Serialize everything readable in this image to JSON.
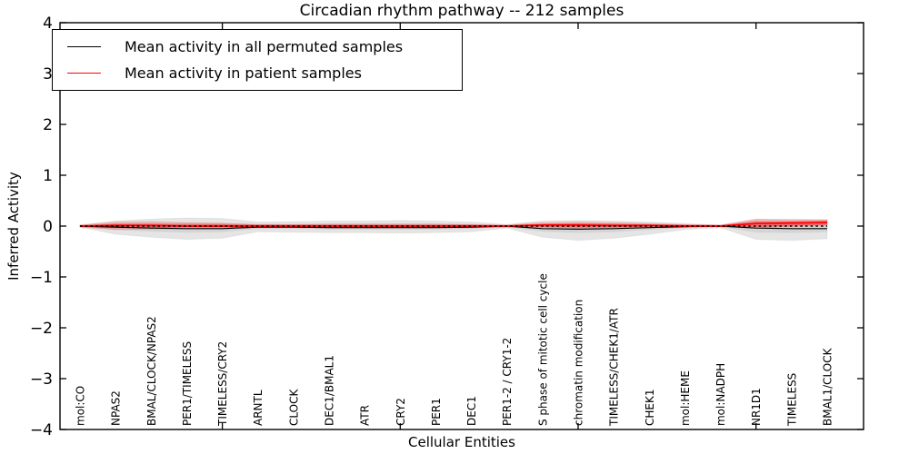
{
  "figure": {
    "title": "Circadian rhythm pathway -- 212 samples",
    "xlabel": "Cellular Entities",
    "ylabel": "Inferred Activity"
  },
  "legend": {
    "items": [
      {
        "label": "Mean activity in all permuted samples",
        "color": "#000000"
      },
      {
        "label": "Mean activity in patient samples",
        "color": "#ff0000"
      }
    ],
    "position": "upper left"
  },
  "chart_data": {
    "type": "line",
    "title": "Circadian rhythm pathway -- 212 samples",
    "xlabel": "Cellular Entities",
    "ylabel": "Inferred Activity",
    "ylim": [
      -4,
      4
    ],
    "yticks": [
      -4,
      -3,
      -2,
      -1,
      0,
      1,
      2,
      3,
      4
    ],
    "grid": false,
    "legend_position": "upper left",
    "frame_tick_indices": [
      4,
      9,
      14,
      19
    ],
    "categories": [
      "mol:CO",
      "NPAS2",
      "BMAL/CLOCK/NPAS2",
      "PER1/TIMELESS",
      "TIMELESS/CRY2",
      "ARNTL",
      "CLOCK",
      "DEC1/BMAL1",
      "ATR",
      "CRY2",
      "PER1",
      "DEC1",
      "PER1-2 / CRY1-2",
      "S phase of mitotic cell cycle",
      "chromatin modification",
      "TIMELESS/CHEK1/ATR",
      "CHEK1",
      "mol:HEME",
      "mol:NADPH",
      "NR1D1",
      "TIMELESS",
      "BMAL1/CLOCK"
    ],
    "series": [
      {
        "name": "Mean activity in all permuted samples",
        "color": "#000000",
        "values": [
          0,
          -0.02,
          -0.04,
          -0.05,
          -0.05,
          -0.02,
          -0.02,
          -0.03,
          -0.03,
          -0.03,
          -0.03,
          -0.02,
          0,
          -0.05,
          -0.06,
          -0.05,
          -0.03,
          -0.01,
          0,
          -0.04,
          -0.05,
          -0.05
        ]
      },
      {
        "name": "Mean activity in patient samples",
        "color": "#ff0000",
        "values": [
          0,
          0.01,
          0.01,
          0,
          0,
          0,
          0,
          0,
          0,
          0,
          0,
          0,
          0,
          0.02,
          0.02,
          0.01,
          0.01,
          0,
          0,
          0.05,
          0.06,
          0.07
        ]
      }
    ],
    "bands": [
      {
        "name": "permuted-range-outer",
        "color": "#bbbbbb",
        "opacity": 0.38,
        "upper": [
          0.02,
          0.1,
          0.14,
          0.16,
          0.15,
          0.08,
          0.09,
          0.1,
          0.1,
          0.11,
          0.1,
          0.08,
          0.03,
          0.1,
          0.11,
          0.1,
          0.08,
          0.05,
          0.02,
          0.13,
          0.14,
          0.12
        ],
        "lower": [
          -0.02,
          -0.16,
          -0.22,
          -0.26,
          -0.24,
          -0.11,
          -0.12,
          -0.13,
          -0.13,
          -0.14,
          -0.13,
          -0.11,
          -0.04,
          -0.22,
          -0.28,
          -0.24,
          -0.16,
          -0.07,
          -0.03,
          -0.26,
          -0.28,
          -0.25
        ]
      },
      {
        "name": "permuted-range-inner",
        "color": "#bbbbbb",
        "opacity": 0.38,
        "upper": [
          0.01,
          0.04,
          0.05,
          0.06,
          0.05,
          0.03,
          0.03,
          0.04,
          0.04,
          0.04,
          0.04,
          0.03,
          0.01,
          0.03,
          0.04,
          0.03,
          0.03,
          0.02,
          0.01,
          0.05,
          0.05,
          0.04
        ],
        "lower": [
          -0.01,
          -0.07,
          -0.1,
          -0.12,
          -0.11,
          -0.05,
          -0.05,
          -0.06,
          -0.06,
          -0.06,
          -0.06,
          -0.05,
          -0.02,
          -0.1,
          -0.13,
          -0.11,
          -0.07,
          -0.03,
          -0.01,
          -0.12,
          -0.13,
          -0.11
        ]
      },
      {
        "name": "patient-range-outer",
        "color": "#ff0000",
        "opacity": 0.18,
        "upper": [
          0.02,
          0.08,
          0.09,
          0.07,
          0.06,
          0.03,
          0.03,
          0.04,
          0.04,
          0.04,
          0.04,
          0.03,
          0.02,
          0.07,
          0.08,
          0.07,
          0.05,
          0.03,
          0.02,
          0.14,
          0.12,
          0.13
        ],
        "lower": [
          -0.02,
          -0.07,
          -0.06,
          -0.05,
          -0.04,
          -0.03,
          -0.03,
          -0.03,
          -0.03,
          -0.03,
          -0.03,
          -0.03,
          -0.02,
          -0.03,
          -0.04,
          -0.04,
          -0.03,
          -0.02,
          -0.01,
          -0.04,
          -0.01,
          0.01
        ]
      },
      {
        "name": "patient-range-inner",
        "color": "#ff0000",
        "opacity": 0.35,
        "upper": [
          0.01,
          0.04,
          0.04,
          0.03,
          0.03,
          0.02,
          0.02,
          0.02,
          0.02,
          0.02,
          0.02,
          0.02,
          0.01,
          0.04,
          0.05,
          0.04,
          0.03,
          0.02,
          0.01,
          0.09,
          0.09,
          0.1
        ],
        "lower": [
          -0.01,
          -0.03,
          -0.03,
          -0.02,
          -0.02,
          -0.01,
          -0.01,
          -0.02,
          -0.02,
          -0.02,
          -0.02,
          -0.01,
          -0.01,
          -0.01,
          -0.02,
          -0.02,
          -0.01,
          -0.01,
          0,
          -0.01,
          0.01,
          0.03
        ]
      }
    ],
    "zero_line": {
      "y": 0,
      "style": "dashed",
      "color": "#000000"
    }
  }
}
